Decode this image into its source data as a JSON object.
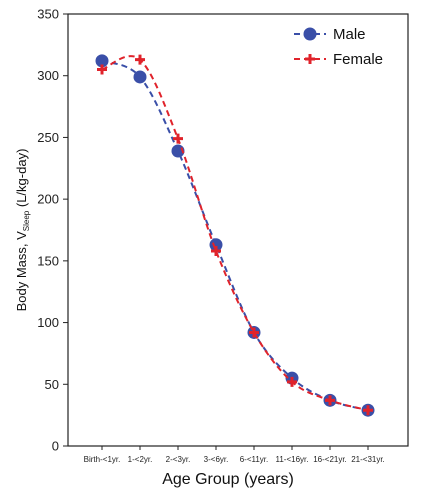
{
  "chart_data": {
    "type": "line",
    "xlabel": "Age Group (years)",
    "ylabel": "Body Mass, V",
    "ylabel_subscript": "Sleep",
    "ylabel_units": " (L/kg-day)",
    "categories": [
      "Birth-<1yr.",
      "1-<2yr.",
      "2-<3yr.",
      "3-<6yr.",
      "6-<11yr.",
      "11-<16yr.",
      "16-<21yr.",
      "21-<31yr."
    ],
    "ylim": [
      0,
      350
    ],
    "yticks": [
      0,
      50,
      100,
      150,
      200,
      250,
      300,
      350
    ],
    "grid": false,
    "legend_position": "top-right",
    "series": [
      {
        "name": "Male",
        "marker": "circle",
        "color": "#3a4fa8",
        "line_style": "dashed",
        "values": [
          312,
          299,
          239,
          163,
          92,
          55,
          37,
          29
        ]
      },
      {
        "name": "Female",
        "marker": "plus",
        "color": "#e0232b",
        "line_style": "dashed",
        "values": [
          305,
          313,
          249,
          158,
          92,
          52,
          37,
          29
        ]
      }
    ]
  }
}
